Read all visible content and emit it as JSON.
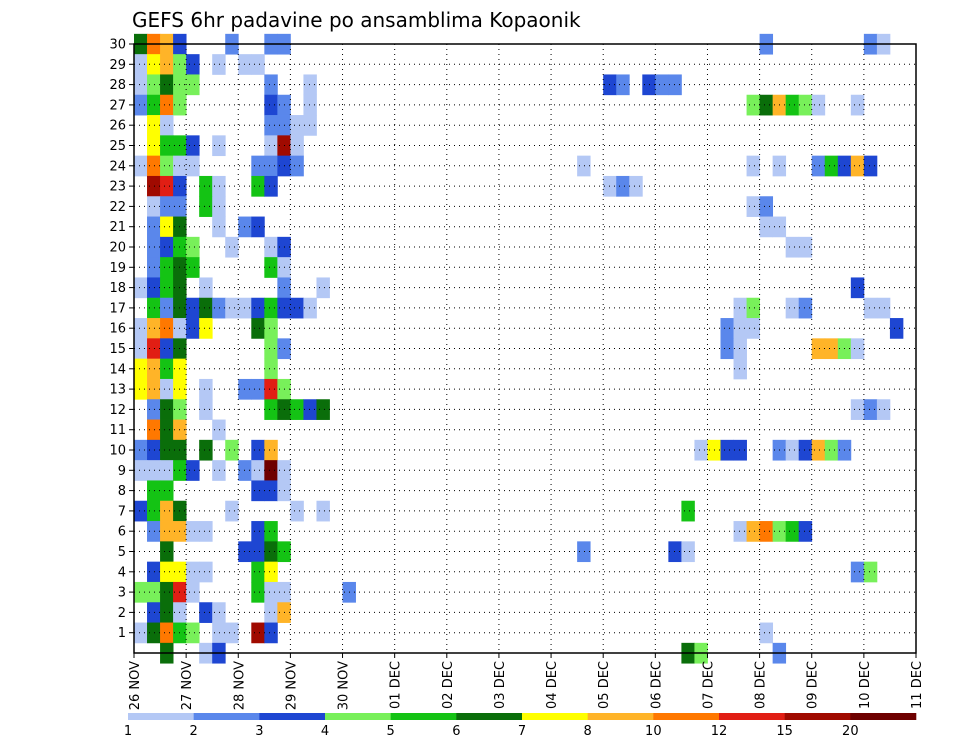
{
  "chart_data": {
    "type": "heatmap",
    "title": "GEFS 6hr padavine po ansamblima Kopaonik",
    "xlabel": "",
    "ylabel": "",
    "x_tick_labels": [
      "26 NOV",
      "27 NOV",
      "28 NOV",
      "29 NOV",
      "30 NOV",
      "01 DEC",
      "02 DEC",
      "03 DEC",
      "04 DEC",
      "05 DEC",
      "06 DEC",
      "07 DEC",
      "08 DEC",
      "09 DEC",
      "10 DEC",
      "11 DEC"
    ],
    "y_tick_labels": [
      "1",
      "2",
      "3",
      "4",
      "5",
      "6",
      "7",
      "8",
      "9",
      "10",
      "11",
      "12",
      "13",
      "14",
      "15",
      "16",
      "17",
      "18",
      "19",
      "20",
      "21",
      "22",
      "23",
      "24",
      "25",
      "26",
      "27",
      "28",
      "29",
      "30"
    ],
    "ylim": [
      0,
      30
    ],
    "xlim": [
      0,
      60
    ],
    "x_unit": "6-hour steps from 26 NOV 00Z",
    "grid": true,
    "colorbar": {
      "labels": [
        "1",
        "2",
        "3",
        "4",
        "5",
        "6",
        "7",
        "8",
        "10",
        "12",
        "15",
        "20"
      ],
      "colors": [
        "#b4c8f5",
        "#5a87eb",
        "#1e46d2",
        "#78f05a",
        "#14c314",
        "#0a6e0a",
        "#ffff00",
        "#ffb428",
        "#ff7800",
        "#e11e14",
        "#a00a00",
        "#6e0000"
      ]
    },
    "cells_note": "each cell: [member, step, level]; level is 1-based index into colorbar.colors",
    "cells": [
      [
        30,
        1,
        6
      ],
      [
        30,
        2,
        9
      ],
      [
        30,
        3,
        8
      ],
      [
        30,
        4,
        3
      ],
      [
        30,
        8,
        2
      ],
      [
        30,
        11,
        2
      ],
      [
        30,
        12,
        2
      ],
      [
        30,
        49,
        2
      ],
      [
        30,
        57,
        2
      ],
      [
        30,
        58,
        1
      ],
      [
        29,
        1,
        1
      ],
      [
        29,
        2,
        7
      ],
      [
        29,
        3,
        8
      ],
      [
        29,
        4,
        4
      ],
      [
        29,
        5,
        3
      ],
      [
        29,
        7,
        1
      ],
      [
        29,
        9,
        1
      ],
      [
        29,
        10,
        1
      ],
      [
        28,
        1,
        1
      ],
      [
        28,
        2,
        4
      ],
      [
        28,
        3,
        6
      ],
      [
        28,
        4,
        4
      ],
      [
        28,
        5,
        4
      ],
      [
        28,
        11,
        2
      ],
      [
        28,
        14,
        1
      ],
      [
        28,
        37,
        3
      ],
      [
        28,
        38,
        2
      ],
      [
        28,
        40,
        3
      ],
      [
        28,
        41,
        2
      ],
      [
        28,
        42,
        2
      ],
      [
        27,
        1,
        2
      ],
      [
        27,
        2,
        5
      ],
      [
        27,
        3,
        9
      ],
      [
        27,
        4,
        4
      ],
      [
        27,
        11,
        3
      ],
      [
        27,
        12,
        2
      ],
      [
        27,
        14,
        1
      ],
      [
        27,
        48,
        4
      ],
      [
        27,
        49,
        6
      ],
      [
        27,
        50,
        8
      ],
      [
        27,
        51,
        5
      ],
      [
        27,
        52,
        4
      ],
      [
        27,
        53,
        1
      ],
      [
        27,
        56,
        1
      ],
      [
        26,
        2,
        7
      ],
      [
        26,
        3,
        1
      ],
      [
        26,
        11,
        2
      ],
      [
        26,
        12,
        2
      ],
      [
        26,
        13,
        1
      ],
      [
        26,
        14,
        1
      ],
      [
        25,
        2,
        7
      ],
      [
        25,
        3,
        5
      ],
      [
        25,
        4,
        5
      ],
      [
        25,
        5,
        3
      ],
      [
        25,
        7,
        1
      ],
      [
        25,
        11,
        1
      ],
      [
        25,
        12,
        11
      ],
      [
        25,
        13,
        1
      ],
      [
        24,
        1,
        1
      ],
      [
        24,
        2,
        9
      ],
      [
        24,
        3,
        4
      ],
      [
        24,
        4,
        1
      ],
      [
        24,
        5,
        1
      ],
      [
        24,
        10,
        2
      ],
      [
        24,
        11,
        2
      ],
      [
        24,
        12,
        3
      ],
      [
        24,
        13,
        2
      ],
      [
        24,
        35,
        1
      ],
      [
        24,
        48,
        1
      ],
      [
        24,
        50,
        1
      ],
      [
        24,
        53,
        2
      ],
      [
        24,
        54,
        5
      ],
      [
        24,
        55,
        3
      ],
      [
        24,
        56,
        8
      ],
      [
        24,
        57,
        3
      ],
      [
        23,
        2,
        11
      ],
      [
        23,
        3,
        10
      ],
      [
        23,
        4,
        3
      ],
      [
        23,
        6,
        5
      ],
      [
        23,
        7,
        1
      ],
      [
        23,
        10,
        5
      ],
      [
        23,
        11,
        3
      ],
      [
        23,
        37,
        1
      ],
      [
        23,
        38,
        2
      ],
      [
        23,
        39,
        1
      ],
      [
        22,
        2,
        1
      ],
      [
        22,
        3,
        2
      ],
      [
        22,
        4,
        2
      ],
      [
        22,
        6,
        5
      ],
      [
        22,
        7,
        1
      ],
      [
        22,
        48,
        1
      ],
      [
        22,
        49,
        2
      ],
      [
        21,
        2,
        2
      ],
      [
        21,
        3,
        7
      ],
      [
        21,
        4,
        6
      ],
      [
        21,
        7,
        1
      ],
      [
        21,
        9,
        2
      ],
      [
        21,
        10,
        3
      ],
      [
        21,
        49,
        1
      ],
      [
        21,
        50,
        1
      ],
      [
        20,
        2,
        2
      ],
      [
        20,
        3,
        3
      ],
      [
        20,
        4,
        5
      ],
      [
        20,
        5,
        4
      ],
      [
        20,
        8,
        1
      ],
      [
        20,
        11,
        1
      ],
      [
        20,
        12,
        3
      ],
      [
        20,
        51,
        1
      ],
      [
        20,
        52,
        1
      ],
      [
        19,
        2,
        2
      ],
      [
        19,
        3,
        5
      ],
      [
        19,
        4,
        6
      ],
      [
        19,
        5,
        5
      ],
      [
        19,
        11,
        5
      ],
      [
        19,
        12,
        1
      ],
      [
        18,
        1,
        1
      ],
      [
        18,
        2,
        3
      ],
      [
        18,
        3,
        5
      ],
      [
        18,
        4,
        6
      ],
      [
        18,
        6,
        1
      ],
      [
        18,
        12,
        2
      ],
      [
        18,
        15,
        1
      ],
      [
        18,
        56,
        3
      ],
      [
        17,
        2,
        5
      ],
      [
        17,
        3,
        2
      ],
      [
        17,
        4,
        6
      ],
      [
        17,
        5,
        3
      ],
      [
        17,
        6,
        6
      ],
      [
        17,
        7,
        2
      ],
      [
        17,
        8,
        1
      ],
      [
        17,
        9,
        1
      ],
      [
        17,
        10,
        3
      ],
      [
        17,
        11,
        5
      ],
      [
        17,
        12,
        3
      ],
      [
        17,
        13,
        3
      ],
      [
        17,
        14,
        1
      ],
      [
        17,
        47,
        1
      ],
      [
        17,
        48,
        4
      ],
      [
        17,
        51,
        1
      ],
      [
        17,
        52,
        2
      ],
      [
        17,
        57,
        1
      ],
      [
        17,
        58,
        1
      ],
      [
        16,
        1,
        1
      ],
      [
        16,
        2,
        8
      ],
      [
        16,
        3,
        9
      ],
      [
        16,
        4,
        1
      ],
      [
        16,
        5,
        3
      ],
      [
        16,
        6,
        7
      ],
      [
        16,
        10,
        6
      ],
      [
        16,
        11,
        4
      ],
      [
        16,
        46,
        2
      ],
      [
        16,
        47,
        1
      ],
      [
        16,
        48,
        1
      ],
      [
        16,
        59,
        3
      ],
      [
        15,
        1,
        1
      ],
      [
        15,
        2,
        10
      ],
      [
        15,
        3,
        3
      ],
      [
        15,
        4,
        6
      ],
      [
        15,
        11,
        4
      ],
      [
        15,
        12,
        2
      ],
      [
        15,
        46,
        2
      ],
      [
        15,
        47,
        1
      ],
      [
        15,
        53,
        8
      ],
      [
        15,
        54,
        8
      ],
      [
        15,
        55,
        4
      ],
      [
        15,
        56,
        1
      ],
      [
        14,
        1,
        7
      ],
      [
        14,
        2,
        8
      ],
      [
        14,
        3,
        5
      ],
      [
        14,
        4,
        7
      ],
      [
        14,
        11,
        4
      ],
      [
        14,
        47,
        1
      ],
      [
        13,
        1,
        7
      ],
      [
        13,
        2,
        8
      ],
      [
        13,
        3,
        1
      ],
      [
        13,
        4,
        7
      ],
      [
        13,
        6,
        1
      ],
      [
        13,
        9,
        2
      ],
      [
        13,
        10,
        2
      ],
      [
        13,
        11,
        10
      ],
      [
        13,
        12,
        4
      ],
      [
        12,
        2,
        2
      ],
      [
        12,
        3,
        6
      ],
      [
        12,
        4,
        4
      ],
      [
        12,
        6,
        1
      ],
      [
        12,
        11,
        5
      ],
      [
        12,
        12,
        6
      ],
      [
        12,
        13,
        5
      ],
      [
        12,
        14,
        3
      ],
      [
        12,
        15,
        6
      ],
      [
        12,
        56,
        1
      ],
      [
        12,
        57,
        2
      ],
      [
        12,
        58,
        1
      ],
      [
        11,
        2,
        9
      ],
      [
        11,
        3,
        6
      ],
      [
        11,
        4,
        8
      ],
      [
        11,
        7,
        1
      ],
      [
        10,
        1,
        2
      ],
      [
        10,
        2,
        3
      ],
      [
        10,
        3,
        6
      ],
      [
        10,
        4,
        6
      ],
      [
        10,
        6,
        6
      ],
      [
        10,
        8,
        4
      ],
      [
        10,
        10,
        3
      ],
      [
        10,
        11,
        8
      ],
      [
        10,
        44,
        1
      ],
      [
        10,
        45,
        7
      ],
      [
        10,
        46,
        3
      ],
      [
        10,
        47,
        3
      ],
      [
        10,
        50,
        2
      ],
      [
        10,
        51,
        1
      ],
      [
        10,
        52,
        3
      ],
      [
        10,
        53,
        8
      ],
      [
        10,
        54,
        4
      ],
      [
        10,
        55,
        2
      ],
      [
        9,
        1,
        1
      ],
      [
        9,
        2,
        1
      ],
      [
        9,
        3,
        1
      ],
      [
        9,
        4,
        5
      ],
      [
        9,
        5,
        3
      ],
      [
        9,
        7,
        1
      ],
      [
        9,
        9,
        2
      ],
      [
        9,
        10,
        1
      ],
      [
        9,
        11,
        12
      ],
      [
        9,
        12,
        1
      ],
      [
        8,
        2,
        5
      ],
      [
        8,
        3,
        5
      ],
      [
        8,
        10,
        3
      ],
      [
        8,
        11,
        3
      ],
      [
        8,
        12,
        1
      ],
      [
        7,
        1,
        3
      ],
      [
        7,
        2,
        5
      ],
      [
        7,
        3,
        8
      ],
      [
        7,
        4,
        6
      ],
      [
        7,
        8,
        1
      ],
      [
        7,
        13,
        1
      ],
      [
        7,
        15,
        1
      ],
      [
        7,
        43,
        5
      ],
      [
        6,
        2,
        2
      ],
      [
        6,
        3,
        8
      ],
      [
        6,
        4,
        8
      ],
      [
        6,
        5,
        1
      ],
      [
        6,
        6,
        1
      ],
      [
        6,
        10,
        3
      ],
      [
        6,
        11,
        5
      ],
      [
        6,
        47,
        1
      ],
      [
        6,
        48,
        8
      ],
      [
        6,
        49,
        9
      ],
      [
        6,
        50,
        4
      ],
      [
        6,
        51,
        5
      ],
      [
        6,
        52,
        3
      ],
      [
        5,
        3,
        6
      ],
      [
        5,
        9,
        3
      ],
      [
        5,
        10,
        3
      ],
      [
        5,
        11,
        6
      ],
      [
        5,
        12,
        5
      ],
      [
        5,
        35,
        2
      ],
      [
        5,
        42,
        3
      ],
      [
        5,
        43,
        1
      ],
      [
        4,
        2,
        3
      ],
      [
        4,
        3,
        7
      ],
      [
        4,
        4,
        7
      ],
      [
        4,
        5,
        1
      ],
      [
        4,
        6,
        1
      ],
      [
        4,
        10,
        5
      ],
      [
        4,
        11,
        7
      ],
      [
        4,
        56,
        2
      ],
      [
        4,
        57,
        4
      ],
      [
        3,
        1,
        4
      ],
      [
        3,
        2,
        4
      ],
      [
        3,
        3,
        6
      ],
      [
        3,
        4,
        10
      ],
      [
        3,
        5,
        1
      ],
      [
        3,
        10,
        5
      ],
      [
        3,
        11,
        1
      ],
      [
        3,
        12,
        1
      ],
      [
        3,
        17,
        2
      ],
      [
        2,
        2,
        3
      ],
      [
        2,
        3,
        6
      ],
      [
        2,
        4,
        1
      ],
      [
        2,
        6,
        3
      ],
      [
        2,
        7,
        1
      ],
      [
        2,
        11,
        1
      ],
      [
        2,
        12,
        8
      ],
      [
        1,
        1,
        1
      ],
      [
        1,
        2,
        6
      ],
      [
        1,
        3,
        9
      ],
      [
        1,
        4,
        5
      ],
      [
        1,
        5,
        4
      ],
      [
        1,
        7,
        1
      ],
      [
        1,
        8,
        1
      ],
      [
        1,
        10,
        11
      ],
      [
        1,
        11,
        3
      ],
      [
        1,
        49,
        1
      ],
      [
        0,
        3,
        6
      ],
      [
        0,
        6,
        1
      ],
      [
        0,
        7,
        3
      ],
      [
        0,
        43,
        6
      ],
      [
        0,
        44,
        4
      ],
      [
        0,
        50,
        2
      ]
    ]
  }
}
